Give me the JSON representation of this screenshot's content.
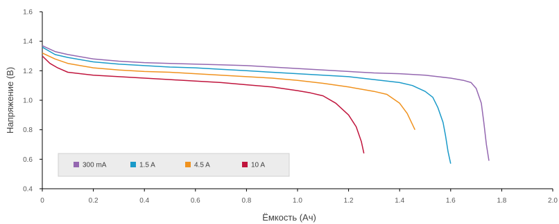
{
  "chart_data": {
    "type": "line",
    "xlabel": "Ёмкость (Ач)",
    "ylabel": "Напряжение (В)",
    "xlim": [
      0,
      2.0
    ],
    "ylim": [
      0.4,
      1.6
    ],
    "x_ticks": [
      "0",
      "0.2",
      "0.4",
      "0.6",
      "0.8",
      "1.0",
      "1.2",
      "1.4",
      "1.6",
      "1.8",
      "2.0"
    ],
    "y_ticks": [
      "0.4",
      "0.6",
      "0.8",
      "1.0",
      "1.2",
      "1.4",
      "1.6"
    ],
    "grid": false,
    "legend_position": "bottom-left",
    "series": [
      {
        "name": "300 mA",
        "color": "#9467b0",
        "x": [
          0,
          0.05,
          0.1,
          0.2,
          0.3,
          0.4,
          0.5,
          0.6,
          0.7,
          0.8,
          0.9,
          1.0,
          1.1,
          1.2,
          1.3,
          1.4,
          1.5,
          1.55,
          1.6,
          1.65,
          1.68,
          1.7,
          1.72,
          1.73,
          1.74,
          1.75
        ],
        "y": [
          1.37,
          1.33,
          1.31,
          1.28,
          1.265,
          1.255,
          1.25,
          1.245,
          1.24,
          1.235,
          1.225,
          1.215,
          1.205,
          1.195,
          1.185,
          1.18,
          1.17,
          1.16,
          1.15,
          1.135,
          1.12,
          1.08,
          0.98,
          0.85,
          0.7,
          0.59
        ]
      },
      {
        "name": "1.5 A",
        "color": "#1a9ac9",
        "x": [
          0,
          0.05,
          0.1,
          0.2,
          0.3,
          0.4,
          0.5,
          0.6,
          0.7,
          0.8,
          0.9,
          1.0,
          1.1,
          1.2,
          1.3,
          1.4,
          1.45,
          1.5,
          1.53,
          1.55,
          1.57,
          1.58,
          1.59,
          1.6
        ],
        "y": [
          1.36,
          1.31,
          1.29,
          1.26,
          1.245,
          1.235,
          1.225,
          1.22,
          1.21,
          1.2,
          1.19,
          1.18,
          1.17,
          1.16,
          1.14,
          1.12,
          1.1,
          1.06,
          1.02,
          0.95,
          0.85,
          0.76,
          0.65,
          0.57
        ]
      },
      {
        "name": "4.5 A",
        "color": "#f0921e",
        "x": [
          0,
          0.05,
          0.1,
          0.2,
          0.3,
          0.4,
          0.5,
          0.6,
          0.7,
          0.8,
          0.9,
          1.0,
          1.1,
          1.2,
          1.3,
          1.35,
          1.4,
          1.43,
          1.46
        ],
        "y": [
          1.32,
          1.28,
          1.25,
          1.22,
          1.205,
          1.195,
          1.19,
          1.18,
          1.17,
          1.16,
          1.15,
          1.135,
          1.115,
          1.09,
          1.06,
          1.04,
          0.98,
          0.91,
          0.8
        ]
      },
      {
        "name": "10 A",
        "color": "#c0143c",
        "x": [
          0,
          0.03,
          0.06,
          0.1,
          0.2,
          0.3,
          0.4,
          0.5,
          0.6,
          0.7,
          0.8,
          0.9,
          1.0,
          1.05,
          1.1,
          1.15,
          1.2,
          1.23,
          1.25,
          1.26
        ],
        "y": [
          1.3,
          1.25,
          1.22,
          1.19,
          1.17,
          1.16,
          1.15,
          1.14,
          1.13,
          1.12,
          1.105,
          1.09,
          1.065,
          1.05,
          1.03,
          0.98,
          0.9,
          0.82,
          0.72,
          0.64
        ]
      }
    ]
  }
}
